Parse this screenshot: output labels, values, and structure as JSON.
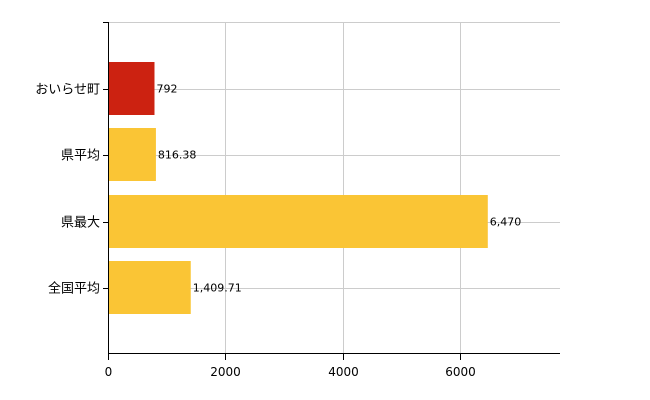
{
  "chart_data": {
    "type": "bar",
    "orientation": "horizontal",
    "categories": [
      "おいらせ町",
      "県平均",
      "県最大",
      "全国平均"
    ],
    "values": [
      792,
      816.38,
      6470,
      1409.71
    ],
    "value_labels": [
      "792",
      "816.38",
      "6,470",
      "1,409.71"
    ],
    "bar_colors": [
      "#cc2211",
      "#fac535",
      "#fac535",
      "#fac535"
    ],
    "xlim": [
      0,
      7700
    ],
    "xticks": [
      0,
      2000,
      4000,
      6000
    ],
    "xtick_labels": [
      "0",
      "2000",
      "4000",
      "6000"
    ],
    "grid": true,
    "legend": false,
    "title": "",
    "xlabel": "",
    "ylabel": ""
  }
}
